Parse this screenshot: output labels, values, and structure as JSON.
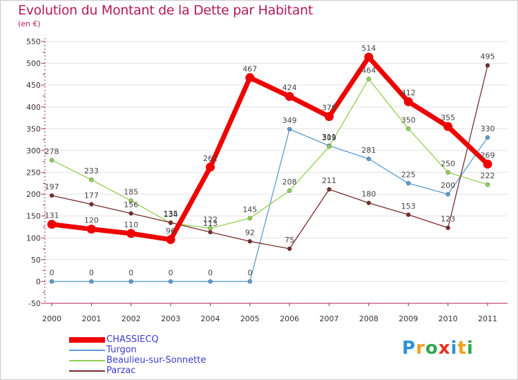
{
  "title": "Evolution du Montant de la Dette par Habitant",
  "subtitle": "(en €)",
  "logo": {
    "letters": [
      "P",
      "r",
      "o",
      "x",
      "i",
      "t",
      "i"
    ],
    "colors": [
      "#2f8fd8",
      "#f0a11a",
      "#2fa84f",
      "#e8301c",
      "#2f8fd8",
      "#f0a11a",
      "#2fa84f"
    ]
  },
  "chart_data": {
    "type": "line",
    "x": [
      "2000",
      "2001",
      "2002",
      "2003",
      "2004",
      "2005",
      "2006",
      "2007",
      "2008",
      "2009",
      "2010",
      "2011"
    ],
    "yticks": [
      -50,
      0,
      50,
      100,
      150,
      200,
      250,
      300,
      350,
      400,
      450,
      500,
      550
    ],
    "ylim": [
      -50,
      550
    ],
    "grid": "horizontal",
    "legend": "bottom-left",
    "series": [
      {
        "name": "CHASSIECQ",
        "color": "#ee0000",
        "values": [
          131,
          120,
          110,
          96,
          262,
          467,
          424,
          378,
          514,
          412,
          355,
          269
        ]
      },
      {
        "name": "Turgon",
        "color": "#5a9bd4",
        "values": [
          0,
          0,
          0,
          0,
          0,
          0,
          349,
          311,
          281,
          225,
          200,
          330
        ]
      },
      {
        "name": "Beaulieu-sur-Sonnette",
        "color": "#8fd14f",
        "values": [
          278,
          233,
          185,
          134,
          122,
          145,
          208,
          309,
          464,
          350,
          250,
          222
        ]
      },
      {
        "name": "Parzac",
        "color": "#7a2a2a",
        "values": [
          197,
          177,
          156,
          135,
          113,
          92,
          75,
          211,
          180,
          153,
          123,
          495
        ]
      }
    ]
  }
}
